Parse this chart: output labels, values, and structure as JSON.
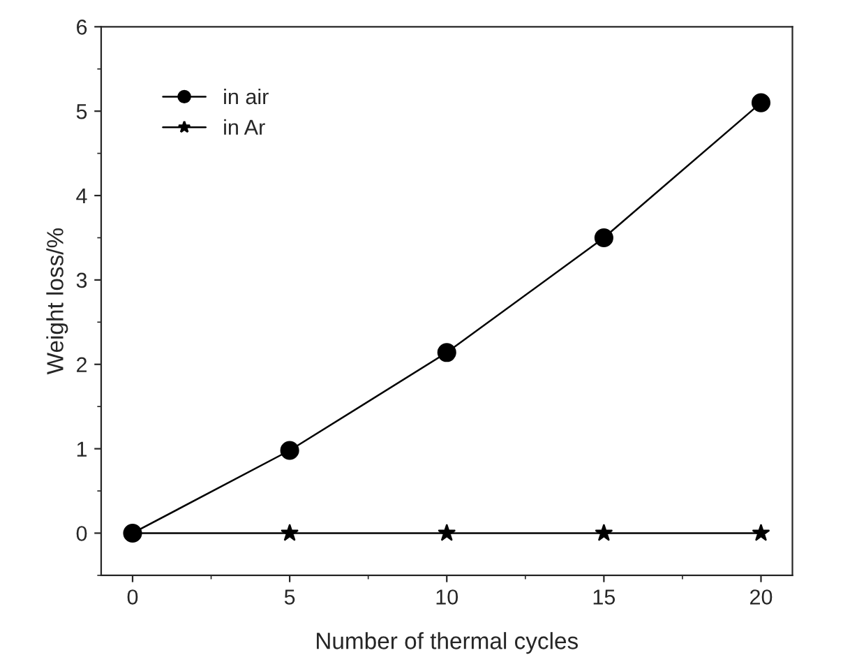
{
  "chart_data": {
    "type": "line",
    "xlabel": "Number of thermal cycles",
    "ylabel": "Weight loss/%",
    "x": [
      0,
      5,
      10,
      15,
      20
    ],
    "series": [
      {
        "name": "in air",
        "color": "#000000",
        "marker": "circle",
        "values": [
          0,
          0.98,
          2.14,
          3.5,
          5.1
        ]
      },
      {
        "name": "in Ar",
        "color": "#000000",
        "marker": "star",
        "values": [
          0,
          0,
          0,
          0,
          0
        ]
      }
    ],
    "xlim": [
      -1,
      21
    ],
    "xticks": [
      0,
      5,
      10,
      15,
      20
    ],
    "ylim": [
      -0.5,
      6
    ],
    "yticks": [
      0,
      1,
      2,
      3,
      4,
      5,
      6
    ],
    "line_style": "solid",
    "grid": false,
    "legend": "top left"
  }
}
